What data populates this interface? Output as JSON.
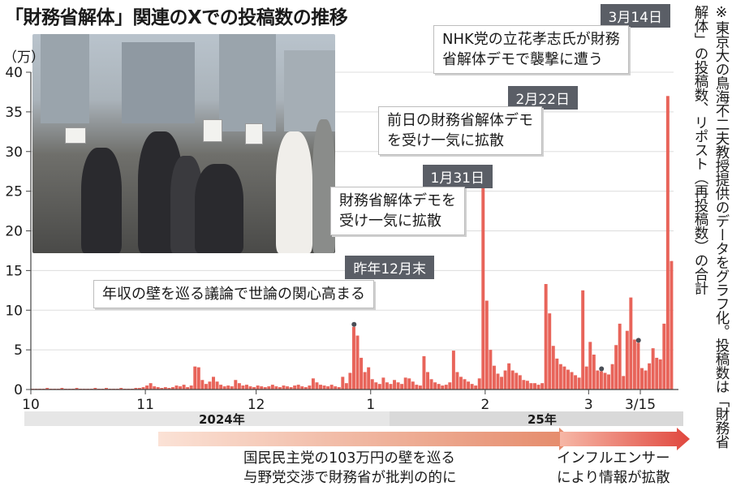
{
  "title": "「財務省解体」関連のXでの投稿数の推移",
  "unit": "（万）",
  "note": "※東京大の鳥海不二夫教授提供のデータをグラフ化。投稿数は「財務省解体」の投稿数、リポスト（再投稿数）の合計",
  "years": {
    "y2024": "2024年",
    "y2025": "25年"
  },
  "callouts": {
    "c1": {
      "date": "昨年12月末",
      "text": [
        "年収の壁を巡る議論で世論の関心高まる"
      ]
    },
    "c2": {
      "date": "1月31日",
      "text": [
        "財務省解体デモを",
        "受け一気に拡散"
      ]
    },
    "c3": {
      "date": "2月22日",
      "text": [
        "前日の財務省解体デモ",
        "を受け一気に拡散"
      ]
    },
    "c4": {
      "date": "3月14日",
      "text": [
        "NHK党の立花孝志氏が財務",
        "省解体デモで襲撃に遭う"
      ]
    }
  },
  "arrows": {
    "left": [
      "国民民主党の103万円の壁を巡る",
      "与野党交渉で財務省が批判の的に"
    ],
    "right": [
      "インフルエンサー",
      "により情報が拡散"
    ]
  },
  "colors": {
    "bar": "#e8645a",
    "axis": "#444444",
    "calloutHeader": "#5a5e66",
    "arrow": "#e0735f"
  },
  "chart_data": {
    "type": "bar",
    "ylim": [
      0,
      40
    ],
    "yticks": [
      0,
      5,
      10,
      15,
      20,
      25,
      30,
      35,
      40
    ],
    "xticks": [
      {
        "label": "10",
        "day": 0
      },
      {
        "label": "11",
        "day": 31
      },
      {
        "label": "12",
        "day": 61
      },
      {
        "label": "1",
        "day": 92
      },
      {
        "label": "2",
        "day": 123
      },
      {
        "label": "3",
        "day": 151
      },
      {
        "label": "3/15",
        "day": 165
      }
    ],
    "values": [
      0.1,
      0.1,
      0.1,
      0.1,
      0.2,
      0.1,
      0.1,
      0.1,
      0.2,
      0.1,
      0.1,
      0.1,
      0.2,
      0.1,
      0.1,
      0.1,
      0.1,
      0.2,
      0.1,
      0.1,
      0.2,
      0.1,
      0.1,
      0.1,
      0.2,
      0.1,
      0.1,
      0.1,
      0.2,
      0.2,
      0.3,
      0.5,
      0.8,
      0.4,
      0.3,
      0.2,
      0.3,
      0.2,
      0.3,
      0.5,
      0.4,
      0.6,
      0.3,
      0.5,
      2.9,
      2.8,
      1.2,
      0.7,
      1.0,
      1.6,
      1.0,
      0.6,
      0.4,
      0.5,
      0.4,
      1.2,
      0.8,
      0.5,
      0.6,
      0.4,
      0.3,
      0.5,
      0.4,
      0.3,
      0.4,
      0.6,
      0.4,
      0.3,
      0.5,
      0.4,
      0.3,
      0.5,
      0.6,
      0.4,
      0.3,
      0.5,
      1.4,
      0.9,
      0.6,
      0.5,
      0.4,
      0.6,
      0.4,
      0.3,
      1.6,
      0.8,
      2.1,
      7.9,
      6.8,
      4.0,
      2.2,
      2.8,
      1.3,
      0.9,
      0.7,
      1.5,
      0.9,
      0.7,
      1.2,
      0.9,
      0.7,
      1.5,
      1.4,
      1.0,
      0.6,
      0.5,
      4.2,
      2.2,
      1.3,
      0.9,
      0.7,
      0.5,
      0.6,
      0.9,
      4.9,
      2.2,
      1.6,
      1.3,
      1.0,
      0.7,
      0.5,
      1.4,
      26.3,
      11.2,
      5.0,
      3.0,
      2.0,
      1.6,
      2.4,
      3.3,
      2.4,
      2.1,
      1.8,
      1.2,
      1.1,
      0.8,
      0.8,
      0.6,
      0.8,
      13.3,
      9.6,
      5.5,
      3.9,
      3.2,
      2.9,
      2.5,
      2.2,
      1.8,
      1.5,
      12.5,
      2.9,
      6.0,
      4.4,
      2.4,
      2.3,
      2.1,
      1.9,
      3.2,
      5.6,
      8.3,
      1.7,
      7.4,
      11.6,
      6.3,
      5.9,
      2.7,
      2.4,
      3.3,
      5.2,
      4.0,
      3.8,
      8.3,
      37.0,
      16.2
    ]
  }
}
